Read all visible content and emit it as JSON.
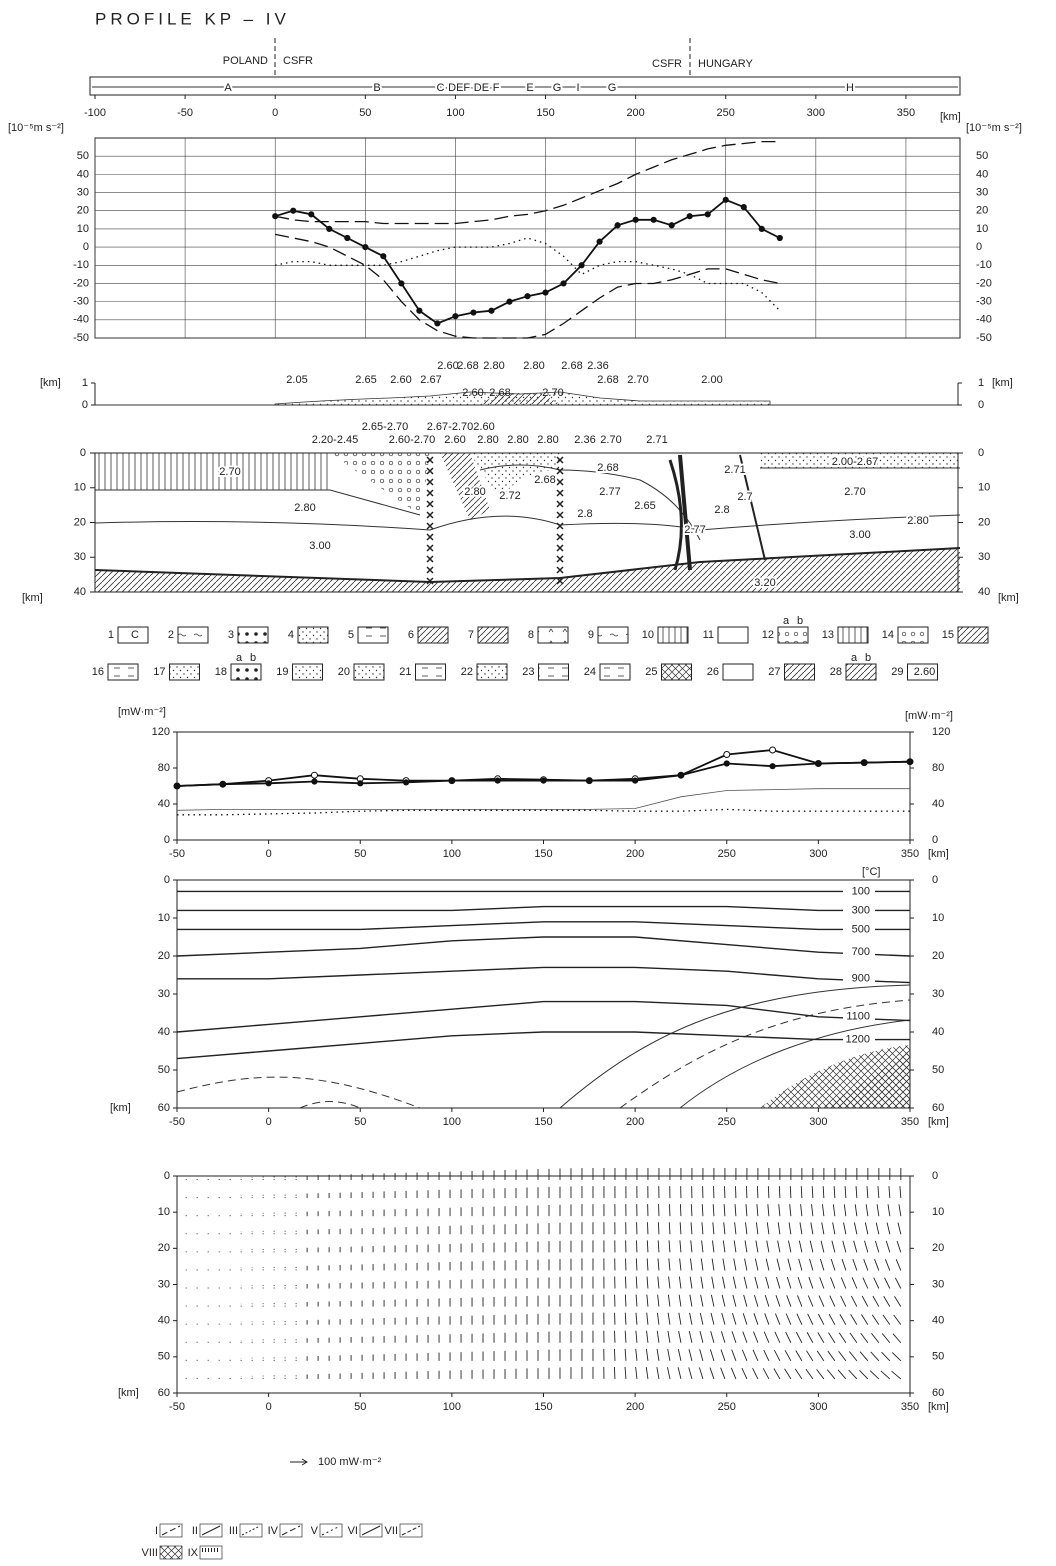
{
  "title": "PROFILE  KP – IV",
  "profile_bar": {
    "countries": [
      "POLAND",
      "CSFR",
      "CSFR",
      "HUNGARY"
    ],
    "units": [
      "A",
      "B",
      "C·DEF·DE·F",
      "E",
      "G",
      "I",
      "G",
      "H"
    ]
  },
  "chart_data": [
    {
      "type": "line",
      "y_unit": "[10⁻⁵m s⁻²]",
      "x_unit": "[km]",
      "xlim": [
        -100,
        380
      ],
      "ylim": [
        -50,
        60
      ],
      "xticks": [
        -100,
        -50,
        0,
        50,
        100,
        150,
        200,
        250,
        300,
        350
      ],
      "yticks": [
        -50,
        -40,
        -30,
        -20,
        -10,
        0,
        10,
        20,
        30,
        40,
        50
      ],
      "grid": true,
      "x": [
        0,
        10,
        20,
        30,
        40,
        50,
        60,
        70,
        80,
        90,
        100,
        110,
        120,
        130,
        140,
        150,
        160,
        170,
        180,
        190,
        200,
        210,
        220,
        230,
        240,
        250,
        260,
        270,
        280
      ],
      "series": [
        {
          "style": "solid",
          "marker": "dot",
          "color": "#111",
          "values": [
            17,
            20,
            18,
            10,
            5,
            0,
            -5,
            -20,
            -35,
            -42,
            -38,
            -36,
            -35,
            -30,
            -27,
            -25,
            -20,
            -10,
            3,
            12,
            15,
            15,
            12,
            17,
            18,
            26,
            22,
            10,
            5
          ]
        },
        {
          "style": "dashed",
          "color": "#111",
          "values": [
            17,
            15,
            14,
            14,
            14,
            14,
            13,
            13,
            13,
            13,
            13,
            14,
            15,
            17,
            18,
            20,
            23,
            27,
            31,
            35,
            40,
            44,
            48,
            51,
            54,
            56,
            57,
            58,
            58
          ]
        },
        {
          "style": "dotted",
          "color": "#111",
          "values": [
            -10,
            -8,
            -8,
            -10,
            -10,
            -10,
            -10,
            -8,
            -5,
            -2,
            0,
            0,
            0,
            2,
            5,
            2,
            -5,
            -15,
            -10,
            -8,
            -8,
            -10,
            -12,
            -15,
            -20,
            -20,
            -20,
            -25,
            -35
          ]
        },
        {
          "style": "dashed",
          "color": "#111",
          "values": [
            7,
            5,
            3,
            0,
            -5,
            -10,
            -18,
            -30,
            -40,
            -46,
            -49,
            -50,
            -50,
            -50,
            -50,
            -48,
            -42,
            -35,
            -28,
            -22,
            -20,
            -20,
            -18,
            -15,
            -12,
            -12,
            -15,
            -18,
            -20
          ]
        }
      ]
    },
    {
      "type": "profile",
      "y_unit": "[km]",
      "ylim": [
        0,
        1
      ],
      "yticks": [
        0,
        1
      ],
      "labels": [
        "2.05",
        "2.65",
        "2.60",
        "2.67",
        "2.60",
        "2.68",
        "2.80",
        "2.80",
        "2.68",
        "2.36",
        "2.00",
        "2.60",
        "2.68",
        "2.70",
        "2.68",
        "2.70"
      ]
    },
    {
      "type": "cross-section",
      "y_unit": "[km]",
      "ylim": [
        0,
        40
      ],
      "yticks": [
        0,
        10,
        20,
        30,
        40
      ],
      "labels": [
        "2.65-2.70",
        "2.67-2.70",
        "2.60",
        "2.20-2.45",
        "2.60-2.70",
        "2.60",
        "2.80",
        "2.80",
        "2.80",
        "2.36",
        "2.70",
        "2.71",
        "2.70",
        "2.80",
        "3.00",
        "2.80",
        "2.72",
        "2.68",
        "2.68",
        "2.77",
        "2.8",
        "2.65",
        "2.77",
        "2.71",
        "2.7",
        "2.8",
        "2.00-2.67",
        "2.70",
        "2.80",
        "3.00",
        "3.20"
      ]
    },
    {
      "type": "line",
      "y_unit": "[mW·m⁻²]",
      "x_unit": "[km]",
      "xlim": [
        -50,
        350
      ],
      "ylim": [
        0,
        120
      ],
      "xticks": [
        -50,
        0,
        50,
        100,
        150,
        200,
        250,
        300,
        350
      ],
      "yticks": [
        0,
        40,
        80,
        120
      ],
      "x": [
        -50,
        -25,
        0,
        25,
        50,
        75,
        100,
        125,
        150,
        175,
        200,
        225,
        250,
        275,
        300,
        325,
        350
      ],
      "series": [
        {
          "style": "solid",
          "marker": "circle",
          "color": "#111",
          "values": [
            60,
            62,
            66,
            72,
            68,
            66,
            66,
            68,
            67,
            66,
            68,
            72,
            95,
            100,
            85,
            86,
            87
          ]
        },
        {
          "style": "solid",
          "marker": "dot",
          "color": "#111",
          "values": [
            60,
            62,
            63,
            65,
            63,
            64,
            66,
            66,
            66,
            66,
            66,
            72,
            85,
            82,
            85,
            86,
            87
          ]
        },
        {
          "style": "thin",
          "color": "#555",
          "values": [
            33,
            34,
            34,
            34,
            34,
            34,
            34,
            34,
            34,
            34,
            35,
            48,
            55,
            56,
            57,
            57,
            57
          ]
        },
        {
          "style": "dotted",
          "color": "#111",
          "values": [
            28,
            28,
            29,
            30,
            32,
            33,
            33,
            33,
            33,
            33,
            32,
            32,
            34,
            32,
            32,
            32,
            32
          ]
        }
      ]
    },
    {
      "type": "isotherm",
      "y_unit": "[km]",
      "x_unit": "[km]",
      "temp_unit": "[°C]",
      "xlim": [
        -50,
        350
      ],
      "ylim": [
        0,
        60
      ],
      "xticks": [
        -50,
        0,
        50,
        100,
        150,
        200,
        250,
        300,
        350
      ],
      "yticks": [
        0,
        10,
        20,
        30,
        40,
        50,
        60
      ],
      "x": [
        -50,
        0,
        50,
        100,
        150,
        200,
        250,
        300,
        350
      ],
      "series": [
        {
          "name": "100",
          "values": [
            3,
            3,
            3,
            3,
            3,
            3,
            3,
            3,
            3
          ]
        },
        {
          "name": "300",
          "values": [
            8,
            8,
            8,
            8,
            7,
            7,
            7,
            8,
            8
          ]
        },
        {
          "name": "500",
          "values": [
            13,
            13,
            13,
            12,
            11,
            11,
            12,
            13,
            13
          ]
        },
        {
          "name": "700",
          "values": [
            20,
            19,
            18,
            16,
            15,
            15,
            17,
            19,
            20
          ]
        },
        {
          "name": "900",
          "values": [
            26,
            26,
            25,
            24,
            23,
            23,
            24,
            26,
            27
          ]
        },
        {
          "name": "1100",
          "values": [
            40,
            38,
            36,
            34,
            32,
            32,
            33,
            36,
            37
          ]
        },
        {
          "name": "1200",
          "values": [
            47,
            45,
            43,
            41,
            40,
            40,
            41,
            42,
            42
          ]
        }
      ]
    },
    {
      "type": "vector-field",
      "y_unit": "[km]",
      "x_unit": "[km]",
      "xlim": [
        -50,
        350
      ],
      "ylim": [
        0,
        60
      ],
      "xticks": [
        -50,
        0,
        50,
        100,
        150,
        200,
        250,
        300,
        350
      ],
      "yticks": [
        0,
        10,
        20,
        30,
        40,
        50,
        60
      ]
    }
  ],
  "legend_lithology": [
    {
      "n": 1,
      "symbol": "C"
    },
    {
      "n": 2
    },
    {
      "n": 3
    },
    {
      "n": 4
    },
    {
      "n": 5
    },
    {
      "n": 6
    },
    {
      "n": 7
    },
    {
      "n": 8
    },
    {
      "n": 9
    },
    {
      "n": 10
    },
    {
      "n": 11
    },
    {
      "n": 12,
      "sub": [
        "a",
        "b"
      ]
    },
    {
      "n": 13
    },
    {
      "n": 14
    },
    {
      "n": 15
    },
    {
      "n": 16
    },
    {
      "n": 17
    },
    {
      "n": 18,
      "sub": [
        "a",
        "b"
      ]
    },
    {
      "n": 19
    },
    {
      "n": 20
    },
    {
      "n": 21
    },
    {
      "n": 22
    },
    {
      "n": 23
    },
    {
      "n": 24
    },
    {
      "n": 25
    },
    {
      "n": 26
    },
    {
      "n": 27
    },
    {
      "n": 28,
      "sub": [
        "a",
        "b"
      ]
    },
    {
      "n": 29,
      "symbol": "2.60"
    }
  ],
  "vector_scale": "100 mW·m⁻²",
  "legend_models": [
    "I",
    "II",
    "III",
    "IV",
    "V",
    "VI",
    "VII",
    "VIII",
    "IX"
  ]
}
